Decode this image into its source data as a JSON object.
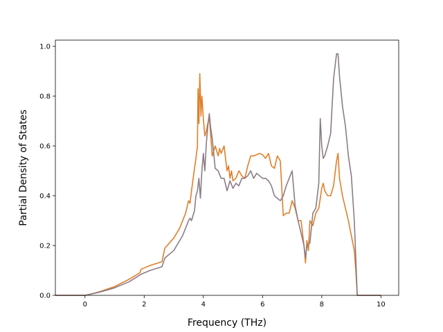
{
  "chart_data": {
    "type": "line",
    "title": "",
    "xlabel": "Frequency (THz)",
    "ylabel": "Partial Density of States",
    "xlim": [
      -1.0,
      10.6
    ],
    "ylim": [
      0.0,
      1.025
    ],
    "xticks": [
      0,
      2,
      4,
      6,
      8,
      10
    ],
    "yticks": [
      0.0,
      0.2,
      0.4,
      0.6,
      0.8,
      1.0
    ],
    "xtick_labels": [
      "0",
      "2",
      "4",
      "6",
      "8",
      "10"
    ],
    "ytick_labels": [
      "0.0",
      "0.2",
      "0.4",
      "0.6",
      "0.8",
      "1.0"
    ],
    "grid": false,
    "legend": "none",
    "series": [
      {
        "color": "#e07e27",
        "x": [
          -1.0,
          0.0,
          0.2,
          0.5,
          1.0,
          1.5,
          1.85,
          1.9,
          2.2,
          2.6,
          2.7,
          3.0,
          3.2,
          3.4,
          3.5,
          3.55,
          3.6,
          3.7,
          3.75,
          3.8,
          3.82,
          3.85,
          3.88,
          3.92,
          3.95,
          4.0,
          4.05,
          4.1,
          4.2,
          4.3,
          4.4,
          4.5,
          4.55,
          4.6,
          4.7,
          4.8,
          4.85,
          4.9,
          4.95,
          5.0,
          5.1,
          5.2,
          5.3,
          5.4,
          5.5,
          5.6,
          5.7,
          5.8,
          5.9,
          6.0,
          6.1,
          6.2,
          6.3,
          6.4,
          6.5,
          6.6,
          6.7,
          6.8,
          6.9,
          7.0,
          7.1,
          7.2,
          7.3,
          7.4,
          7.45,
          7.5,
          7.55,
          7.6,
          7.7,
          7.8,
          7.9,
          8.0,
          8.05,
          8.1,
          8.2,
          8.3,
          8.4,
          8.5,
          8.55,
          8.6,
          8.7,
          8.8,
          8.9,
          9.0,
          9.1,
          9.15,
          9.2,
          10.0
        ],
        "y": [
          0.0,
          0.0,
          0.005,
          0.015,
          0.035,
          0.065,
          0.09,
          0.105,
          0.12,
          0.135,
          0.19,
          0.23,
          0.27,
          0.33,
          0.38,
          0.37,
          0.42,
          0.51,
          0.55,
          0.6,
          0.83,
          0.69,
          0.89,
          0.72,
          0.8,
          0.71,
          0.64,
          0.66,
          0.72,
          0.56,
          0.6,
          0.56,
          0.59,
          0.57,
          0.6,
          0.5,
          0.52,
          0.47,
          0.5,
          0.46,
          0.47,
          0.5,
          0.48,
          0.47,
          0.52,
          0.56,
          0.56,
          0.565,
          0.57,
          0.565,
          0.55,
          0.57,
          0.52,
          0.51,
          0.56,
          0.54,
          0.32,
          0.33,
          0.33,
          0.38,
          0.35,
          0.3,
          0.3,
          0.2,
          0.13,
          0.22,
          0.18,
          0.3,
          0.28,
          0.33,
          0.35,
          0.43,
          0.45,
          0.42,
          0.4,
          0.4,
          0.44,
          0.54,
          0.57,
          0.47,
          0.4,
          0.35,
          0.3,
          0.24,
          0.18,
          0.1,
          0.0,
          0.0
        ]
      },
      {
        "color": "#8b7b86",
        "x": [
          -1.0,
          0.0,
          0.2,
          0.5,
          1.0,
          1.5,
          1.9,
          2.2,
          2.6,
          2.7,
          3.0,
          3.3,
          3.4,
          3.5,
          3.55,
          3.6,
          3.7,
          3.75,
          3.8,
          3.85,
          3.9,
          3.95,
          4.0,
          4.05,
          4.1,
          4.15,
          4.2,
          4.25,
          4.3,
          4.4,
          4.5,
          4.6,
          4.7,
          4.8,
          4.9,
          5.0,
          5.1,
          5.2,
          5.3,
          5.4,
          5.5,
          5.6,
          5.7,
          5.8,
          5.9,
          6.0,
          6.1,
          6.2,
          6.3,
          6.4,
          6.5,
          6.6,
          6.7,
          6.8,
          6.9,
          7.0,
          7.1,
          7.2,
          7.3,
          7.4,
          7.45,
          7.5,
          7.6,
          7.7,
          7.8,
          7.85,
          7.9,
          7.95,
          8.0,
          8.05,
          8.1,
          8.2,
          8.3,
          8.4,
          8.5,
          8.55,
          8.6,
          8.65,
          8.7,
          8.8,
          8.9,
          9.0,
          9.1,
          9.2,
          10.0
        ],
        "y": [
          0.0,
          0.0,
          0.005,
          0.013,
          0.03,
          0.055,
          0.085,
          0.1,
          0.115,
          0.15,
          0.18,
          0.24,
          0.27,
          0.3,
          0.31,
          0.3,
          0.34,
          0.4,
          0.42,
          0.47,
          0.39,
          0.5,
          0.57,
          0.5,
          0.61,
          0.68,
          0.73,
          0.67,
          0.63,
          0.51,
          0.5,
          0.47,
          0.47,
          0.42,
          0.46,
          0.43,
          0.45,
          0.44,
          0.47,
          0.47,
          0.48,
          0.5,
          0.47,
          0.49,
          0.48,
          0.47,
          0.47,
          0.46,
          0.44,
          0.4,
          0.39,
          0.38,
          0.4,
          0.44,
          0.47,
          0.5,
          0.36,
          0.3,
          0.25,
          0.2,
          0.15,
          0.2,
          0.21,
          0.33,
          0.35,
          0.4,
          0.45,
          0.71,
          0.6,
          0.55,
          0.56,
          0.6,
          0.65,
          0.87,
          0.97,
          0.97,
          0.88,
          0.82,
          0.76,
          0.68,
          0.56,
          0.48,
          0.3,
          0.0,
          0.0
        ]
      }
    ]
  }
}
